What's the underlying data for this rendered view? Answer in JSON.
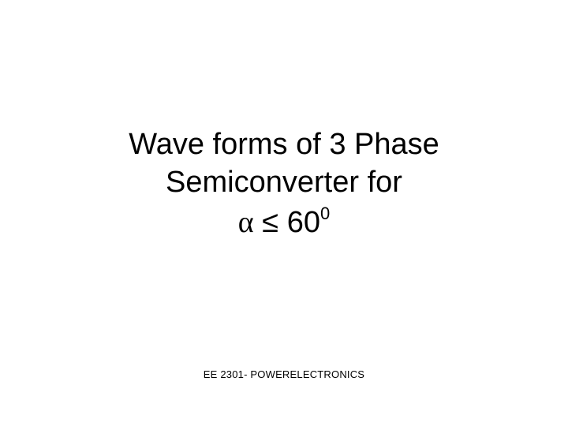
{
  "slide": {
    "title_line1": "Wave forms of 3 Phase",
    "title_line2": "Semiconverter for",
    "math_alpha": "α",
    "math_leq": "≤",
    "math_value": "60",
    "math_super": "0",
    "title_fontsize": 38,
    "title_color": "#000000",
    "background_color": "#ffffff"
  },
  "footer": {
    "text": "EE 2301- POWERELECTRONICS",
    "fontsize": 13,
    "color": "#000000"
  }
}
